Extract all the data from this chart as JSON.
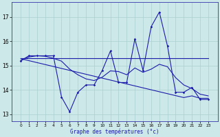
{
  "xlabel": "Graphe des températures (°c)",
  "x": [
    0,
    1,
    2,
    3,
    4,
    5,
    6,
    7,
    8,
    9,
    10,
    11,
    12,
    13,
    14,
    15,
    16,
    17,
    18,
    19,
    20,
    21,
    22,
    23
  ],
  "line_main": [
    15.2,
    15.4,
    15.4,
    15.4,
    15.4,
    13.7,
    13.1,
    13.9,
    14.2,
    14.2,
    14.8,
    15.6,
    14.3,
    14.3,
    16.1,
    14.8,
    16.6,
    17.2,
    15.8,
    13.9,
    13.9,
    14.1,
    13.6,
    13.6
  ],
  "line_flat": [
    15.3,
    15.3,
    15.3,
    15.3,
    15.3,
    15.3,
    15.3,
    15.3,
    15.3,
    15.3,
    15.3,
    15.3,
    15.3,
    15.3,
    15.3,
    15.3,
    15.3,
    15.3,
    15.3,
    15.3,
    15.3,
    15.3,
    15.3,
    15.3
  ],
  "line_trend": [
    15.28,
    15.2,
    15.12,
    15.04,
    14.96,
    14.88,
    14.8,
    14.72,
    14.64,
    14.56,
    14.48,
    14.4,
    14.32,
    14.24,
    14.16,
    14.08,
    14.0,
    13.92,
    13.84,
    13.76,
    13.68,
    13.75,
    13.65,
    13.65
  ],
  "line_avg": [
    15.2,
    15.35,
    15.4,
    15.38,
    15.3,
    15.18,
    14.85,
    14.62,
    14.45,
    14.38,
    14.52,
    14.78,
    14.75,
    14.62,
    14.9,
    14.72,
    14.85,
    15.05,
    14.95,
    14.5,
    14.2,
    14.05,
    13.82,
    13.75
  ],
  "bg_color": "#cde8e8",
  "grid_color": "#aacfcf",
  "line_color": "#1a1aaa",
  "ylim": [
    12.7,
    17.6
  ],
  "yticks": [
    13,
    14,
    15,
    16,
    17
  ],
  "figsize": [
    3.2,
    2.0
  ],
  "dpi": 100
}
